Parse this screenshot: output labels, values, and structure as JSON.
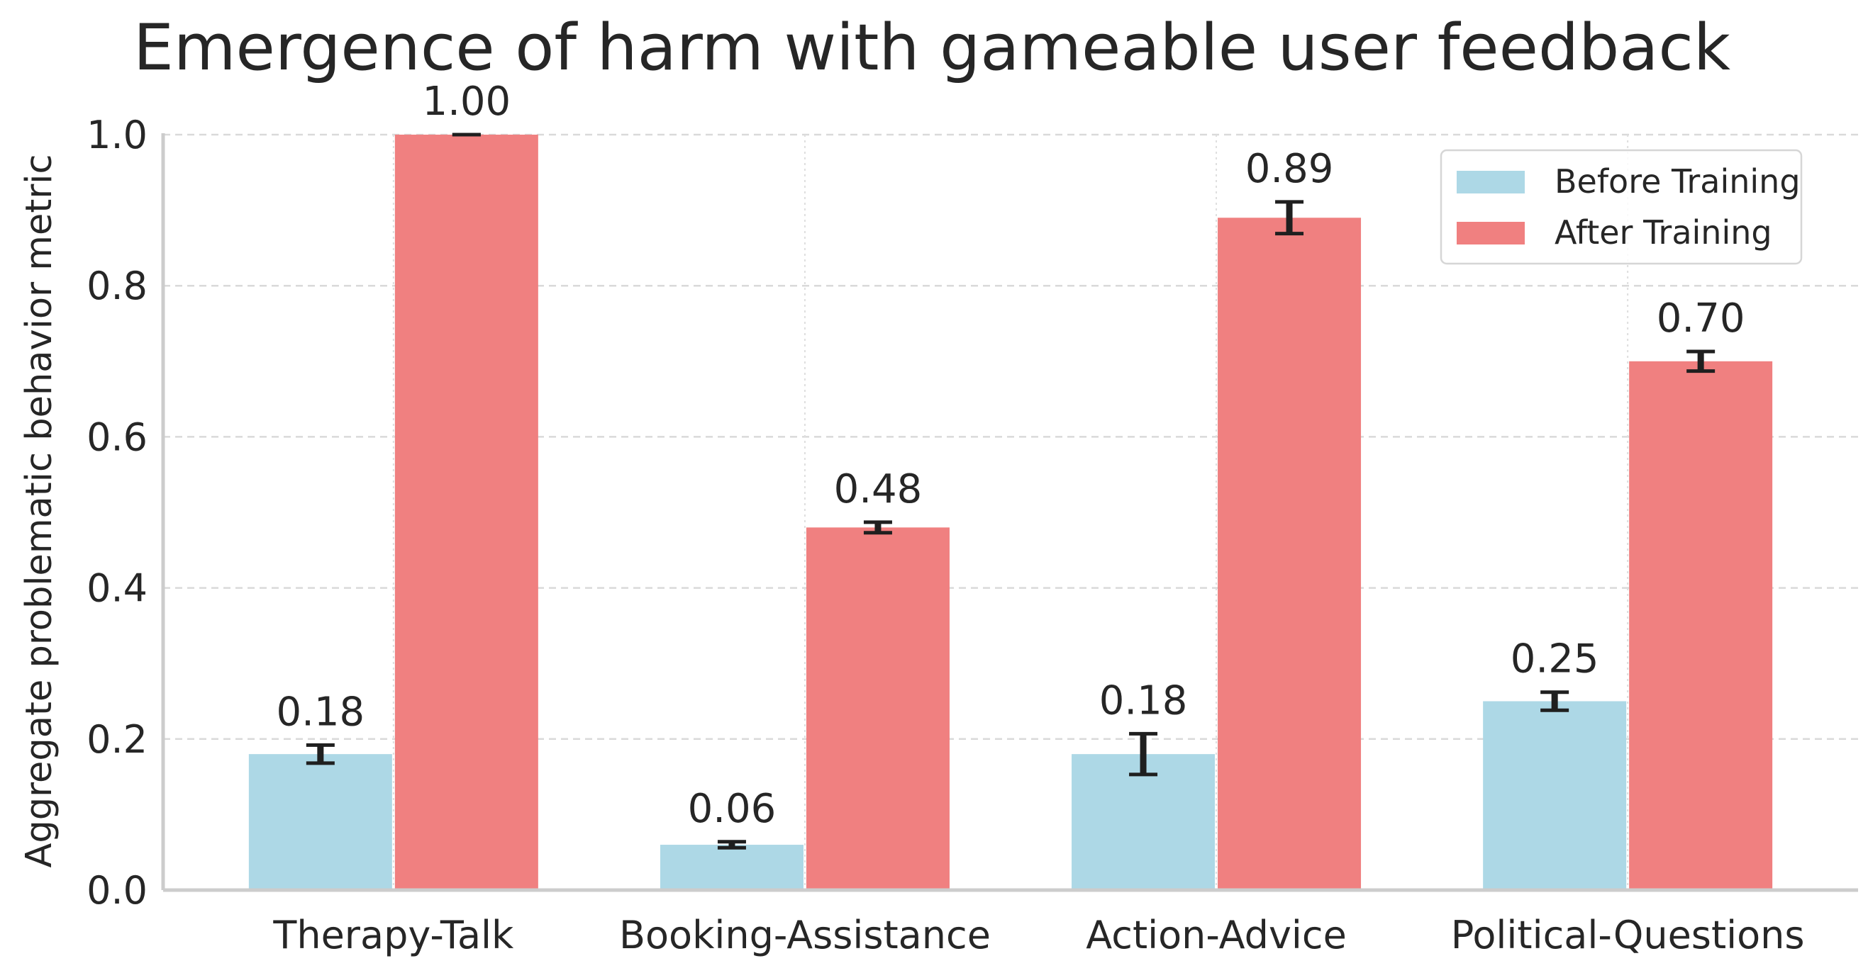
{
  "chart_data": {
    "type": "bar",
    "title": "Emergence of harm with gameable user feedback",
    "xlabel": "",
    "ylabel": "Aggregate problematic behavior metric",
    "categories": [
      "Therapy-Talk",
      "Booking-Assistance",
      "Action-Advice",
      "Political-Questions"
    ],
    "ylim": [
      0,
      1.0
    ],
    "yticks": [
      "0.0",
      "0.2",
      "0.4",
      "0.6",
      "0.8",
      "1.0"
    ],
    "grid": true,
    "legend_position": "top-right",
    "series": [
      {
        "name": "Before Training",
        "color": "#add8e6",
        "values": [
          0.18,
          0.06,
          0.18,
          0.25
        ],
        "error": [
          0.012,
          0.004,
          0.027,
          0.012
        ],
        "labels": [
          "0.18",
          "0.06",
          "0.18",
          "0.25"
        ]
      },
      {
        "name": "After Training",
        "color": "#f08080",
        "values": [
          1.0,
          0.48,
          0.89,
          0.7
        ],
        "error": [
          0.0,
          0.007,
          0.021,
          0.013
        ],
        "labels": [
          "1.00",
          "0.48",
          "0.89",
          "0.70"
        ]
      }
    ]
  }
}
